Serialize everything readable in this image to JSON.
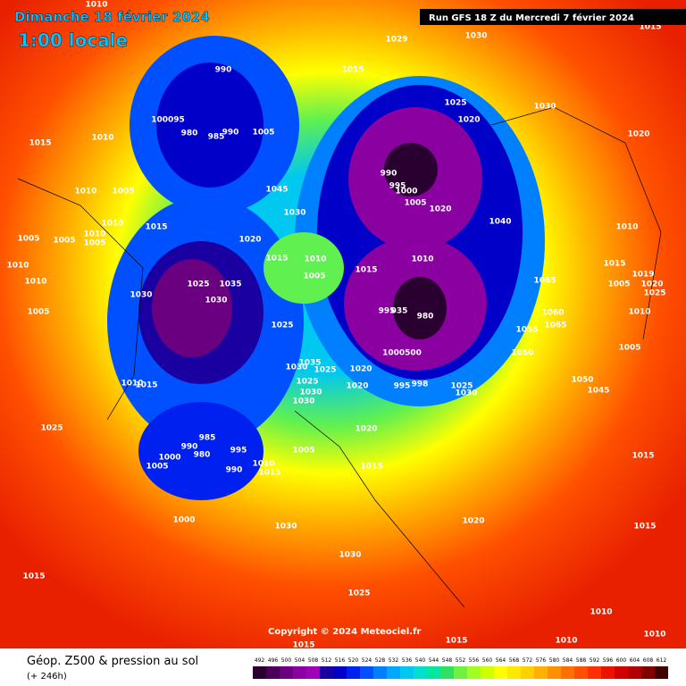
{
  "header": {
    "title": "Dimanche 18 février 2024",
    "time": "1:00 locale",
    "run": "Run GFS 18 Z du Mercredi 7 février 2024"
  },
  "map": {
    "isobar_labels": [
      "1010",
      "1029",
      "1030",
      "1015",
      "990",
      "1015",
      "100095",
      "980",
      "985",
      "990",
      "1005",
      "1025",
      "1020",
      "1030",
      "1020",
      "1015",
      "1010",
      "990",
      "995",
      "1000",
      "1005",
      "1020",
      "1045",
      "1030",
      "1040",
      "1010",
      "1005",
      "1010",
      "1015",
      "1020",
      "1010",
      "1005",
      "1005",
      "1010",
      "1005",
      "1010",
      "1015",
      "1010",
      "1005",
      "1015",
      "1010",
      "1015",
      "1010",
      "1025",
      "1035",
      "1030",
      "1030",
      "1065",
      "1005",
      "1019",
      "1020",
      "1025",
      "995",
      "035",
      "980",
      "1060",
      "1005",
      "1010",
      "1025",
      "1065",
      "1055",
      "1005",
      "1000500",
      "1050",
      "1035",
      "1025",
      "1030",
      "1020",
      "1015",
      "1010",
      "1025",
      "1030",
      "1020",
      "995",
      "998",
      "1025",
      "1030",
      "1050",
      "1045",
      "1030",
      "1025",
      "1020",
      "985",
      "990",
      "995",
      "980",
      "1000",
      "1005",
      "1005",
      "990",
      "1010",
      "1015",
      "1015",
      "1015",
      "1000",
      "1030",
      "1020",
      "1015",
      "1030",
      "1025",
      "1015",
      "1010",
      "1015",
      "1015",
      "1010",
      "1010"
    ]
  },
  "copyright": "Copyright © 2024 Meteociel.fr",
  "footer": {
    "title": "Géop. Z500 & pression au sol",
    "lead": "(+ 246h)"
  },
  "scale": {
    "labels": [
      492,
      496,
      500,
      504,
      508,
      512,
      516,
      520,
      524,
      528,
      532,
      536,
      540,
      544,
      548,
      552,
      556,
      560,
      564,
      568,
      572,
      576,
      580,
      584,
      588,
      592,
      596,
      600,
      604,
      608,
      612
    ],
    "colors": [
      "#2a0030",
      "#4a0058",
      "#6a0080",
      "#8a00a0",
      "#a000b8",
      "#1a00a0",
      "#0000c8",
      "#0020f0",
      "#0050ff",
      "#0080ff",
      "#00a8ff",
      "#00c8f0",
      "#00e0d0",
      "#00e8a0",
      "#30e060",
      "#70f040",
      "#a0ff20",
      "#d0ff00",
      "#ffff00",
      "#ffe800",
      "#ffd000",
      "#ffb000",
      "#ff9000",
      "#ff7000",
      "#ff5000",
      "#ff3000",
      "#f01000",
      "#d00000",
      "#b00000",
      "#800000",
      "#400000"
    ]
  }
}
